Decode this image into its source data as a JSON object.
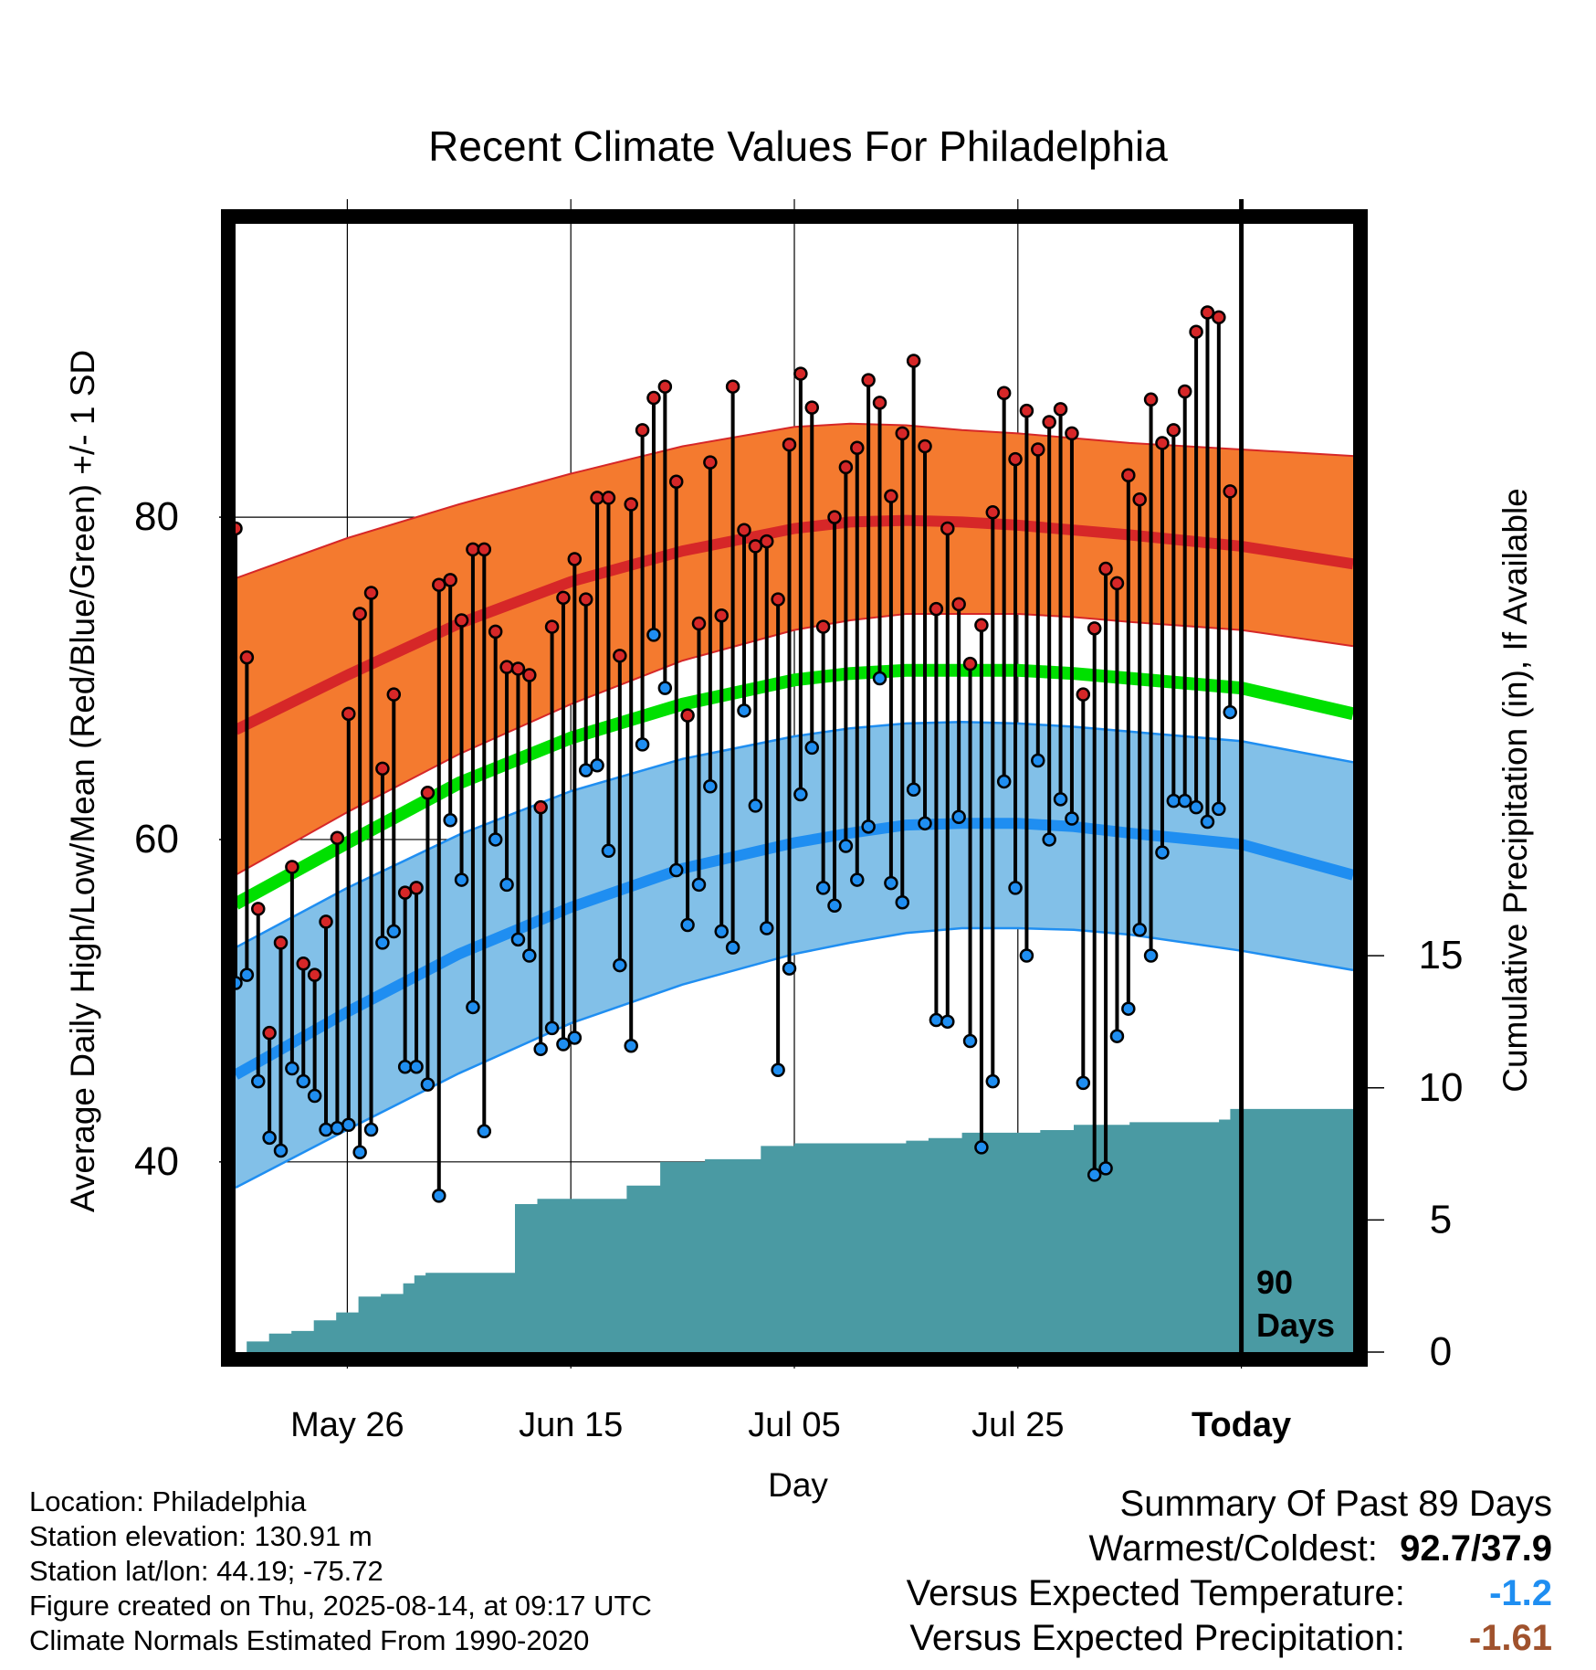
{
  "chart_data": {
    "type": "line",
    "title": "Recent Climate Values For Philadelphia",
    "xlabel": "Day",
    "ylabel": "Average Daily High/Low/Mean (Red/Blue/Green) +/- 1 SD",
    "y2label": "Cumulative Precipitation (in), If Available",
    "ylim": [
      28.2,
      98.2
    ],
    "y2lim": [
      0,
      42.7
    ],
    "xlim": [
      0,
      100
    ],
    "grid": true,
    "x_ticks": [
      {
        "x": 10,
        "label": "May 26"
      },
      {
        "x": 30,
        "label": "Jun 15"
      },
      {
        "x": 50,
        "label": "Jul 05"
      },
      {
        "x": 70,
        "label": "Jul 25"
      },
      {
        "x": 90,
        "label": "Today"
      }
    ],
    "y_ticks": [
      40,
      60,
      80
    ],
    "y2_ticks": [
      0,
      5,
      10,
      15
    ],
    "today_label": "90 Days",
    "normals": {
      "x": [
        0,
        10,
        20,
        30,
        40,
        50,
        55,
        60,
        65,
        70,
        75,
        80,
        90,
        100
      ],
      "high_mean": [
        66.8,
        70.2,
        73.4,
        76.0,
        77.9,
        79.3,
        79.7,
        79.8,
        79.7,
        79.5,
        79.2,
        78.9,
        78.2,
        77.1
      ],
      "high_upper": [
        76.2,
        78.7,
        80.8,
        82.7,
        84.4,
        85.6,
        85.8,
        85.7,
        85.4,
        85.2,
        84.9,
        84.6,
        84.2,
        83.8
      ],
      "high_lower": [
        57.8,
        61.7,
        65.3,
        68.4,
        71.1,
        73.0,
        73.6,
        74.0,
        74.0,
        74.0,
        73.8,
        73.5,
        73.0,
        72.0
      ],
      "mean": [
        56.0,
        59.8,
        63.5,
        66.3,
        68.4,
        69.9,
        70.3,
        70.5,
        70.5,
        70.5,
        70.3,
        70.0,
        69.4,
        67.8
      ],
      "low_mean": [
        45.4,
        49.3,
        52.9,
        55.8,
        58.2,
        59.8,
        60.4,
        60.9,
        61.0,
        61.0,
        60.8,
        60.4,
        59.7,
        57.8
      ],
      "low_upper": [
        53.3,
        57.0,
        60.3,
        63.0,
        65.0,
        66.4,
        66.9,
        67.2,
        67.3,
        67.2,
        67.0,
        66.7,
        66.1,
        64.8
      ],
      "low_lower": [
        38.4,
        42.0,
        45.5,
        48.6,
        51.0,
        52.9,
        53.6,
        54.2,
        54.5,
        54.5,
        54.4,
        54.1,
        53.1,
        51.9
      ]
    },
    "series": [
      {
        "name": "High",
        "color": "#d62728",
        "values": [
          79.3,
          71.3,
          55.7,
          48.0,
          53.6,
          58.3,
          52.3,
          51.6,
          54.9,
          60.1,
          67.8,
          74.0,
          75.3,
          64.4,
          69.0,
          56.7,
          57.0,
          62.9,
          75.8,
          76.1,
          73.6,
          78.0,
          78.0,
          72.9,
          70.7,
          70.6,
          70.2,
          62.0,
          73.2,
          75.0,
          77.4,
          74.9,
          81.2,
          81.2,
          71.4,
          80.8,
          85.4,
          87.4,
          88.1,
          82.2,
          67.7,
          73.4,
          83.4,
          73.9,
          88.1,
          79.2,
          78.2,
          78.5,
          74.9,
          84.5,
          88.9,
          86.8,
          73.2,
          80.0,
          83.1,
          84.3,
          88.5,
          87.1,
          81.3,
          85.2,
          89.7,
          84.4,
          74.3,
          79.3,
          74.6,
          70.9,
          73.3,
          80.3,
          87.7,
          83.6,
          86.6,
          84.2,
          85.9,
          86.7,
          85.2,
          69.0,
          73.1,
          76.8,
          75.9,
          82.6,
          81.1,
          87.3,
          84.6,
          85.4,
          87.8,
          91.5,
          92.7,
          92.4,
          81.6
        ]
      },
      {
        "name": "Low",
        "color": "#1f8ef1",
        "values": [
          51.1,
          51.6,
          45.0,
          41.5,
          40.7,
          45.8,
          45.0,
          44.1,
          42.0,
          42.1,
          42.3,
          40.6,
          42.0,
          53.6,
          54.3,
          45.9,
          45.9,
          44.8,
          37.9,
          61.2,
          57.5,
          49.6,
          41.9,
          60.0,
          57.2,
          53.8,
          52.8,
          47.0,
          48.3,
          47.3,
          47.7,
          64.3,
          64.6,
          59.3,
          52.2,
          47.2,
          65.9,
          72.7,
          69.4,
          58.1,
          54.7,
          57.2,
          63.3,
          54.3,
          53.3,
          68.0,
          62.1,
          54.5,
          45.7,
          52.0,
          62.8,
          65.7,
          57.0,
          55.9,
          59.6,
          57.5,
          60.8,
          70.0,
          57.3,
          56.1,
          63.1,
          61.0,
          48.8,
          48.7,
          61.4,
          47.5,
          40.9,
          45.0,
          63.6,
          57.0,
          52.8,
          64.9,
          60.0,
          62.5,
          61.3,
          44.9,
          39.2,
          39.6,
          47.8,
          49.5,
          54.4,
          52.8,
          59.2,
          62.4,
          62.4,
          62.0,
          61.1,
          61.9,
          67.9
        ]
      },
      {
        "name": "Cumulative Precipitation",
        "color": "#4a9aa3",
        "x": [
          0,
          1,
          3,
          5,
          7,
          9,
          11,
          13,
          15,
          16,
          17,
          19,
          21,
          23,
          25,
          27,
          30,
          32,
          35,
          37,
          38,
          40,
          42,
          45,
          47,
          50,
          55,
          57,
          60,
          62,
          65,
          67,
          70,
          72,
          75,
          80,
          85,
          88,
          89,
          100
        ],
        "values": [
          0,
          0.4,
          0.7,
          0.8,
          1.2,
          1.5,
          2.1,
          2.2,
          2.6,
          2.9,
          3.0,
          3.0,
          3.0,
          3.0,
          5.6,
          5.8,
          5.8,
          5.8,
          6.3,
          6.3,
          7.2,
          7.2,
          7.3,
          7.3,
          7.8,
          7.9,
          7.9,
          7.9,
          8.0,
          8.1,
          8.3,
          8.3,
          8.3,
          8.4,
          8.6,
          8.7,
          8.7,
          8.8,
          9.2,
          9.2
        ]
      }
    ]
  },
  "info": {
    "location": "Location: Philadelphia",
    "elevation": "Station elevation: 130.91 m",
    "latlon": "Station lat/lon: 44.19; -75.72",
    "created": "Figure created on Thu, 2025-08-14, at 09:17 UTC",
    "normals": "Climate Normals Estimated From 1990-2020"
  },
  "summary": {
    "heading": "Summary Of Past 89 Days",
    "warmest_label": "Warmest/Coldest:",
    "warmest_value": "92.7/37.9",
    "temp_label": "Versus Expected Temperature:",
    "temp_value": "-1.2",
    "temp_color": "#1f8ef1",
    "precip_label": "Versus Expected Precipitation:",
    "precip_value": "-1.61",
    "precip_color": "#a0522d"
  }
}
